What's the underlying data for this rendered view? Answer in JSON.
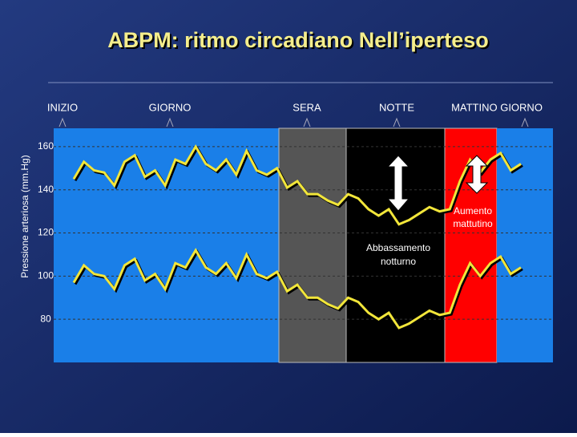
{
  "chart_data": {
    "type": "line",
    "title": "ABPM: ritmo circadiano Nell’iperteso",
    "y_label": "Pressione arteriosa (mm.Hg)",
    "periods": [
      "INIZIO",
      "GIORNO",
      "SERA",
      "NOTTE",
      "MATTINO GIORNO"
    ],
    "annotations": [
      {
        "lines": [
          "Aumento",
          "mattutino"
        ]
      },
      {
        "lines": [
          "Abbassamento",
          "notturno"
        ]
      }
    ],
    "categories": [
      null,
      null,
      null,
      null,
      null,
      null,
      null,
      null,
      null,
      null,
      null,
      null,
      null,
      null,
      null,
      null,
      null,
      null,
      null,
      null,
      null,
      null,
      null,
      null,
      null,
      null,
      null,
      null,
      null,
      null,
      null,
      null,
      null,
      null,
      null,
      null,
      null,
      null,
      null,
      null,
      null,
      null,
      null,
      null,
      null
    ],
    "series": [
      {
        "color": "#f2e63a",
        "values": [
          145,
          153,
          149,
          148,
          142,
          153,
          156,
          146,
          149,
          142,
          154,
          152,
          160,
          152,
          149,
          154,
          147,
          158,
          149,
          147,
          150,
          141,
          144,
          138,
          138,
          135,
          133,
          138,
          136,
          131,
          128,
          131,
          124,
          126,
          129,
          132,
          130,
          131,
          144,
          154,
          148,
          154,
          157,
          149,
          152
        ]
      },
      {
        "color": "#f2e63a",
        "values": [
          97,
          105,
          101,
          100,
          94,
          105,
          108,
          98,
          101,
          94,
          106,
          104,
          112,
          104,
          101,
          106,
          99,
          110,
          101,
          99,
          102,
          93,
          96,
          90,
          90,
          87,
          85,
          90,
          88,
          83,
          80,
          83,
          76,
          78,
          81,
          84,
          82,
          83,
          96,
          106,
          100,
          106,
          109,
          101,
          104
        ]
      }
    ],
    "ylim": [
      60,
      170
    ],
    "yticks": [
      80,
      100,
      120,
      140,
      160
    ],
    "grid": true
  }
}
